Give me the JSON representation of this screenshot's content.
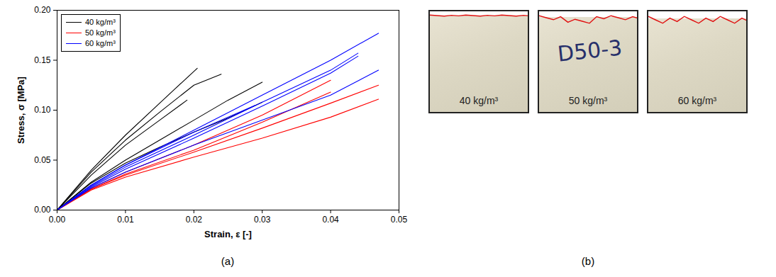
{
  "chart_data": {
    "type": "line",
    "xlabel": "Strain, ε [-]",
    "ylabel": "Stress, σ [MPa]",
    "xlim": [
      0,
      0.05
    ],
    "ylim": [
      0,
      0.2
    ],
    "xticks": [
      {
        "value": 0,
        "label": "0.00"
      },
      {
        "value": 0.01,
        "label": "0.01"
      },
      {
        "value": 0.02,
        "label": "0.02"
      },
      {
        "value": 0.03,
        "label": "0.03"
      },
      {
        "value": 0.04,
        "label": "0.04"
      },
      {
        "value": 0.05,
        "label": "0.05"
      }
    ],
    "yticks": [
      {
        "value": 0,
        "label": "0.00"
      },
      {
        "value": 0.05,
        "label": "0.05"
      },
      {
        "value": 0.1,
        "label": "0.10"
      },
      {
        "value": 0.15,
        "label": "0.15"
      },
      {
        "value": 0.2,
        "label": "0.20"
      }
    ],
    "legend": "top-left",
    "series": [
      {
        "name": "40 kg/m³",
        "color": "#000000",
        "curves": [
          {
            "x": [
              0,
              0.005,
              0.01,
              0.015,
              0.0205
            ],
            "values": [
              0,
              0.04,
              0.075,
              0.107,
              0.142
            ]
          },
          {
            "x": [
              0,
              0.005,
              0.01,
              0.015,
              0.02,
              0.024
            ],
            "values": [
              0,
              0.038,
              0.07,
              0.098,
              0.125,
              0.136
            ]
          },
          {
            "x": [
              0,
              0.005,
              0.01,
              0.015,
              0.019
            ],
            "values": [
              0,
              0.035,
              0.065,
              0.09,
              0.11
            ]
          },
          {
            "x": [
              0,
              0.005,
              0.01,
              0.015,
              0.02,
              0.025,
              0.03
            ],
            "values": [
              0,
              0.028,
              0.05,
              0.07,
              0.09,
              0.11,
              0.128
            ]
          },
          {
            "x": [
              0,
              0.005,
              0.01,
              0.015,
              0.02,
              0.025,
              0.03
            ],
            "values": [
              0,
              0.027,
              0.047,
              0.063,
              0.078,
              0.092,
              0.108
            ]
          }
        ]
      },
      {
        "name": "50 kg/m³",
        "color": "#ff0000",
        "curves": [
          {
            "x": [
              0,
              0.005,
              0.01,
              0.02,
              0.03,
              0.04
            ],
            "values": [
              0,
              0.022,
              0.038,
              0.065,
              0.095,
              0.13
            ]
          },
          {
            "x": [
              0,
              0.005,
              0.01,
              0.02,
              0.03,
              0.04,
              0.047
            ],
            "values": [
              0,
              0.021,
              0.035,
              0.058,
              0.082,
              0.107,
              0.125
            ]
          },
          {
            "x": [
              0,
              0.005,
              0.01,
              0.02,
              0.03,
              0.04,
              0.047
            ],
            "values": [
              0,
              0.02,
              0.033,
              0.053,
              0.072,
              0.093,
              0.111
            ]
          },
          {
            "x": [
              0,
              0.005,
              0.01,
              0.02,
              0.03,
              0.04
            ],
            "values": [
              0,
              0.021,
              0.036,
              0.06,
              0.088,
              0.118
            ]
          }
        ]
      },
      {
        "name": "60 kg/m³",
        "color": "#0000ff",
        "curves": [
          {
            "x": [
              0,
              0.005,
              0.01,
              0.02,
              0.03,
              0.04,
              0.047
            ],
            "values": [
              0,
              0.025,
              0.045,
              0.08,
              0.115,
              0.15,
              0.177
            ]
          },
          {
            "x": [
              0,
              0.005,
              0.01,
              0.02,
              0.03,
              0.04,
              0.044
            ],
            "values": [
              0,
              0.024,
              0.043,
              0.075,
              0.108,
              0.14,
              0.157
            ]
          },
          {
            "x": [
              0,
              0.005,
              0.01,
              0.02,
              0.03,
              0.04,
              0.044
            ],
            "values": [
              0,
              0.023,
              0.041,
              0.072,
              0.104,
              0.137,
              0.154
            ]
          },
          {
            "x": [
              0,
              0.005,
              0.01,
              0.02,
              0.03,
              0.04,
              0.047
            ],
            "values": [
              0,
              0.022,
              0.038,
              0.065,
              0.09,
              0.115,
              0.14
            ]
          },
          {
            "x": [
              0,
              0.005,
              0.01,
              0.02,
              0.029
            ],
            "values": [
              0,
              0.025,
              0.045,
              0.078,
              0.105
            ]
          }
        ]
      }
    ]
  },
  "panel_labels": [
    "(a)",
    "(b)"
  ],
  "photos": [
    {
      "label": "40 kg/m³"
    },
    {
      "label": "50 kg/m³",
      "marking": "D50-3"
    },
    {
      "label": "60 kg/m³"
    }
  ]
}
